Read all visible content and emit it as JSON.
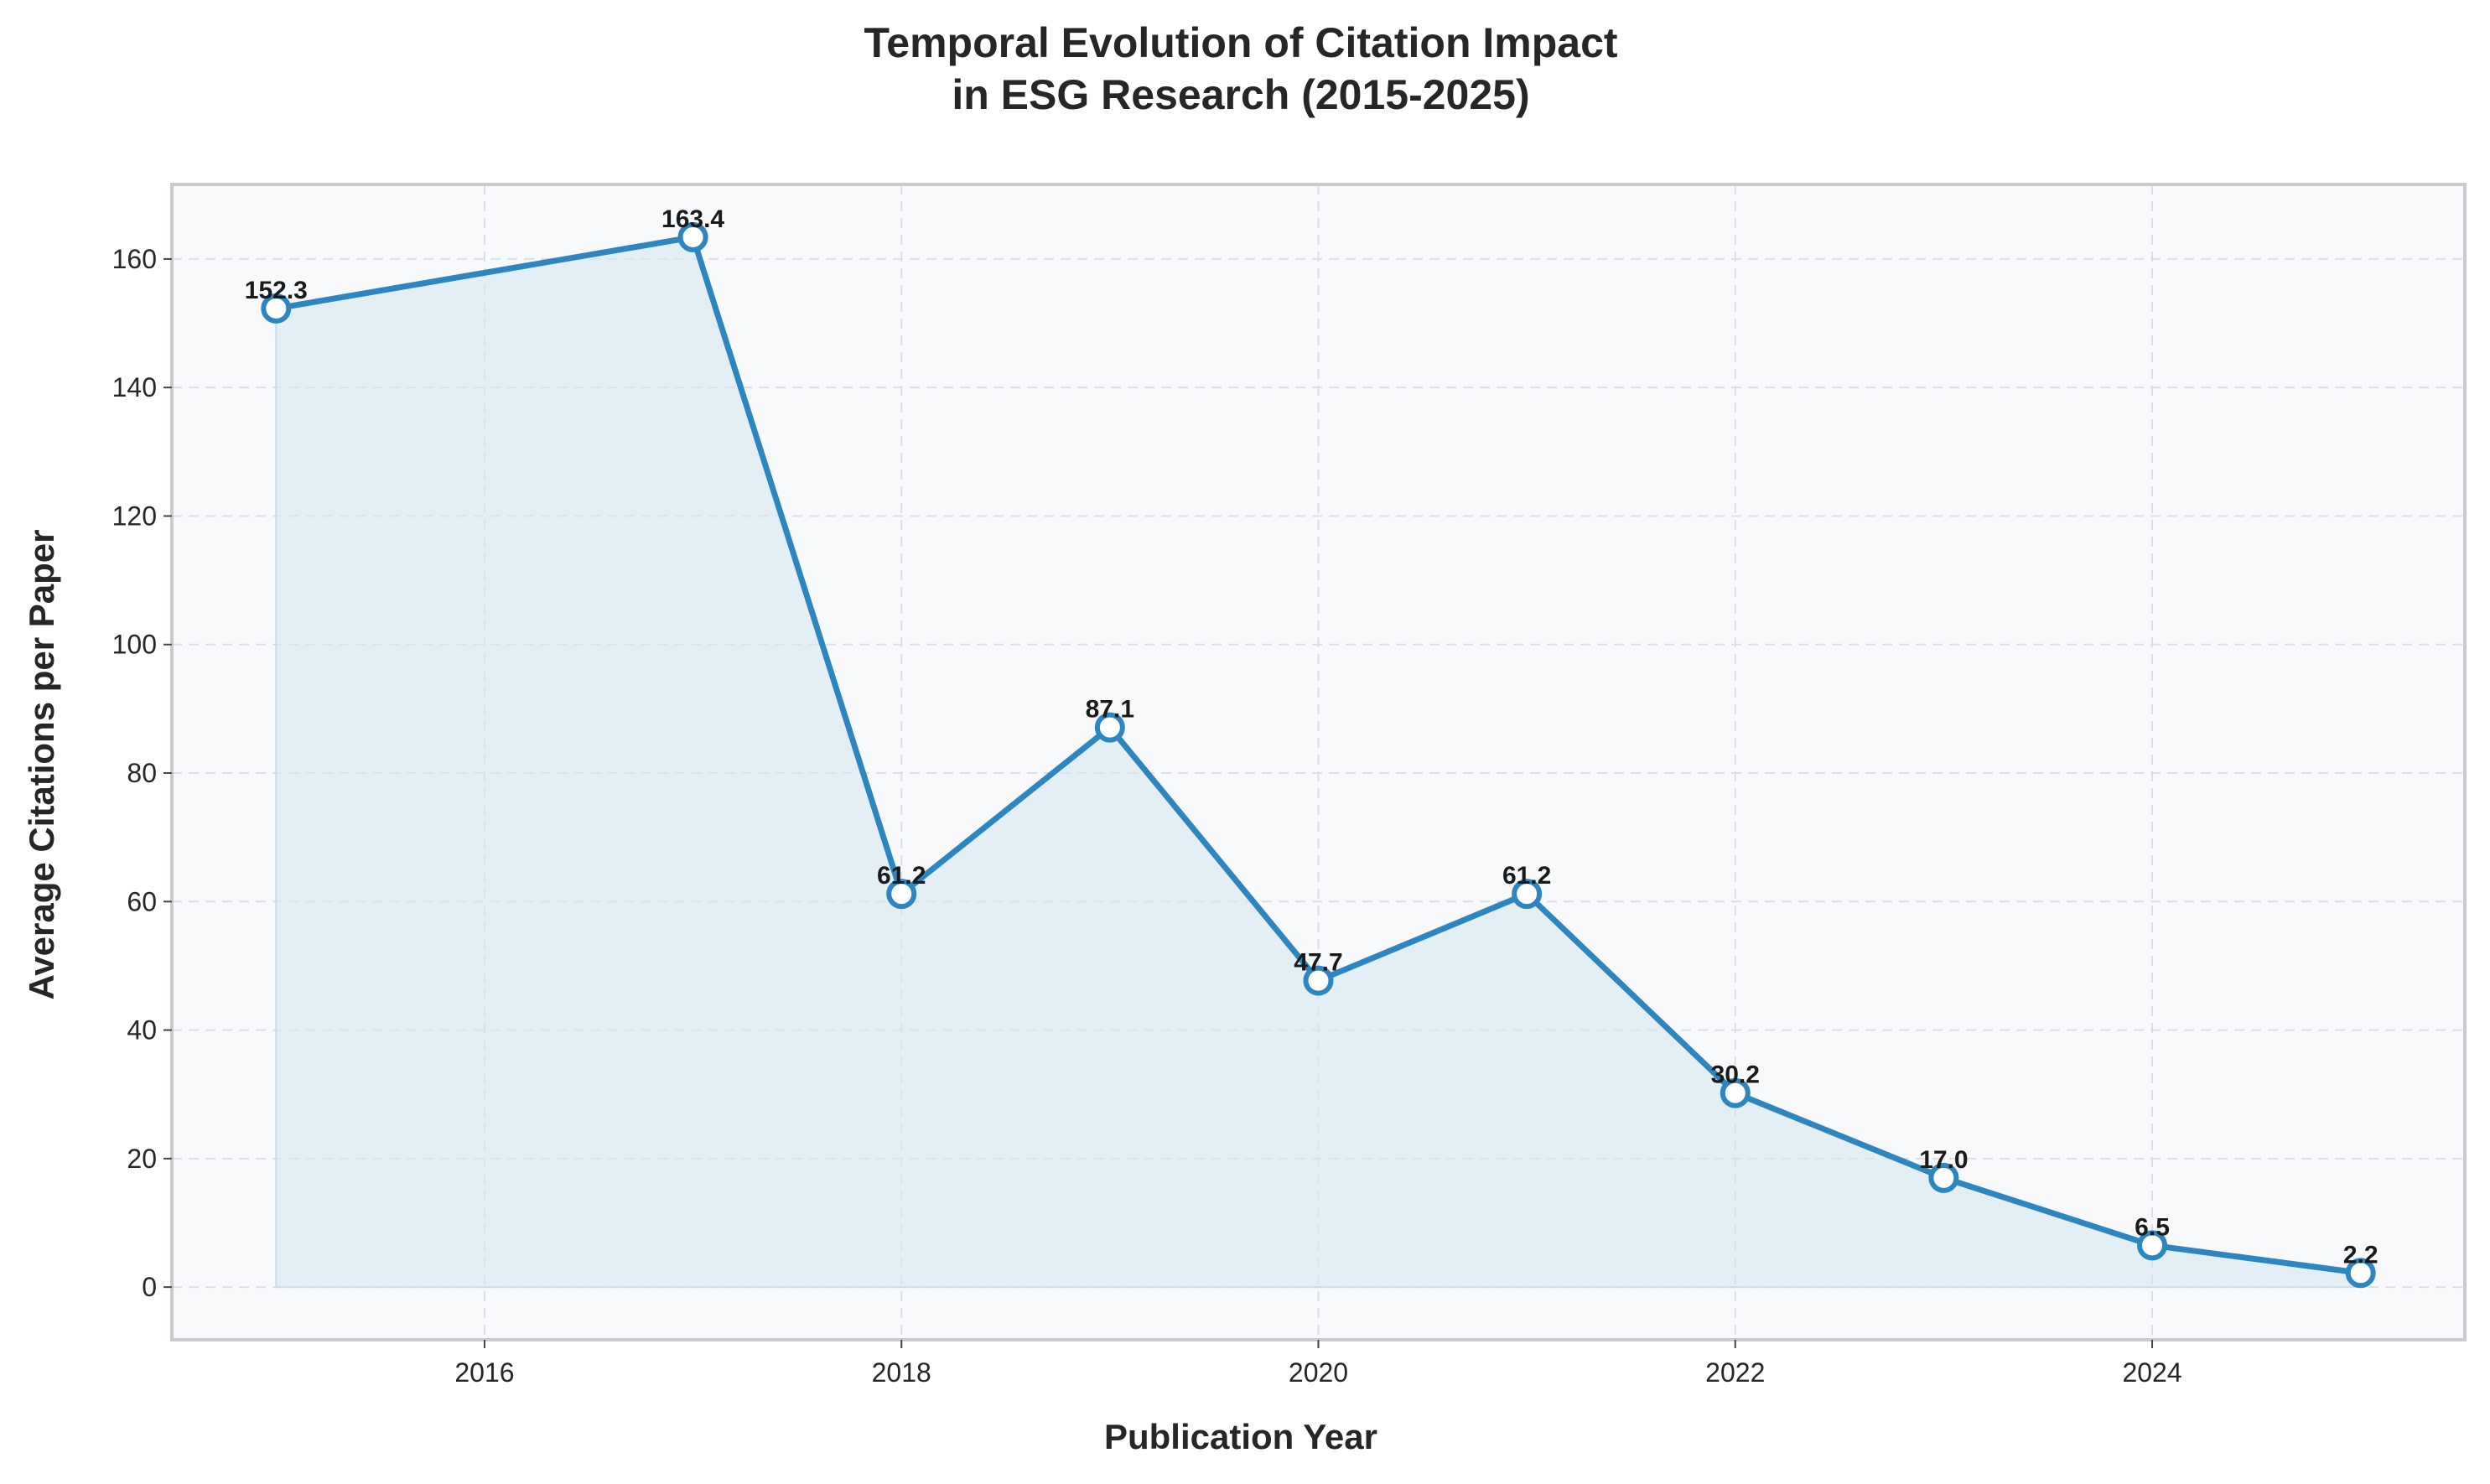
{
  "chart_data": {
    "type": "line",
    "title_lines": [
      "Temporal Evolution of Citation Impact",
      "in ESG Research (2015-2025)"
    ],
    "xlabel": "Publication Year",
    "ylabel": "Average Citations per Paper",
    "x": [
      2015,
      2017,
      2018,
      2019,
      2020,
      2021,
      2022,
      2023,
      2024,
      2025
    ],
    "values": [
      152.3,
      163.4,
      61.2,
      87.1,
      47.7,
      61.2,
      30.2,
      17.0,
      6.5,
      2.2
    ],
    "data_labels": [
      "152.3",
      "163.4",
      "61.2",
      "87.1",
      "47.7",
      "61.2",
      "30.2",
      "17.0",
      "6.5",
      "2.2"
    ],
    "xlim": [
      2014.5,
      2025.5
    ],
    "ylim": [
      -8.2,
      171.6
    ],
    "x_ticks": [
      2016,
      2018,
      2020,
      2022,
      2024
    ],
    "y_ticks": [
      0,
      20,
      40,
      60,
      80,
      100,
      120,
      140,
      160
    ],
    "grid": true,
    "area_fill": true,
    "colors": {
      "line": "#2e86c1",
      "fill": "#d6e7f2",
      "plot_background": "#f7f9fb",
      "frame": "#c8ccd1",
      "marker_face": "#ffffff"
    }
  }
}
